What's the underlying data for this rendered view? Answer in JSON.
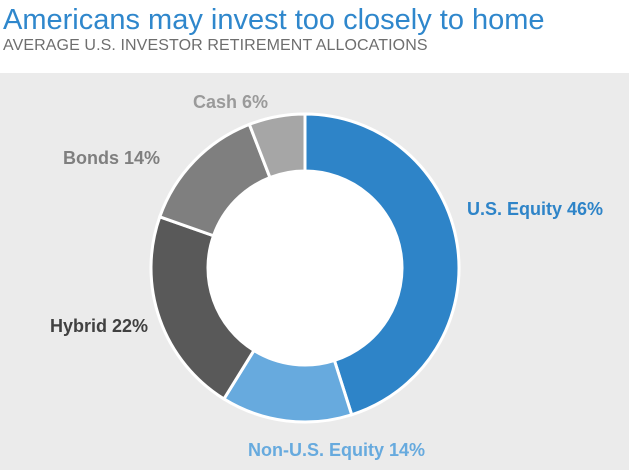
{
  "header": {
    "title": "Americans may invest too closely to home",
    "subtitle": "AVERAGE U.S. INVESTOR RETIREMENT ALLOCATIONS"
  },
  "chart_data": {
    "type": "pie",
    "variant": "donut",
    "title": "Americans may invest too closely to home",
    "subtitle": "AVERAGE U.S. INVESTOR RETIREMENT ALLOCATIONS",
    "unit": "%",
    "start": "12 o'clock",
    "direction": "clockwise",
    "slices": [
      {
        "name": "U.S. Equity",
        "value": 46,
        "label": "U.S. Equity 46%",
        "color": "#2e84c8",
        "label_color": "#2e84c8"
      },
      {
        "name": "Non-U.S. Equity",
        "value": 14,
        "label": "Non-U.S. Equity 14%",
        "color": "#67aade",
        "label_color": "#67aade"
      },
      {
        "name": "Hybrid",
        "value": 22,
        "label": "Hybrid 22%",
        "color": "#595959",
        "label_color": "#404040"
      },
      {
        "name": "Bonds",
        "value": 14,
        "label": "Bonds 14%",
        "color": "#7f7f7f",
        "label_color": "#7f7f7f"
      },
      {
        "name": "Cash",
        "value": 6,
        "label": "Cash 6%",
        "color": "#a6a6a6",
        "label_color": "#9a9a9a"
      }
    ],
    "colors": {
      "background": "#ebebeb",
      "separator": "#ffffff",
      "hole": "#ffffff"
    }
  }
}
